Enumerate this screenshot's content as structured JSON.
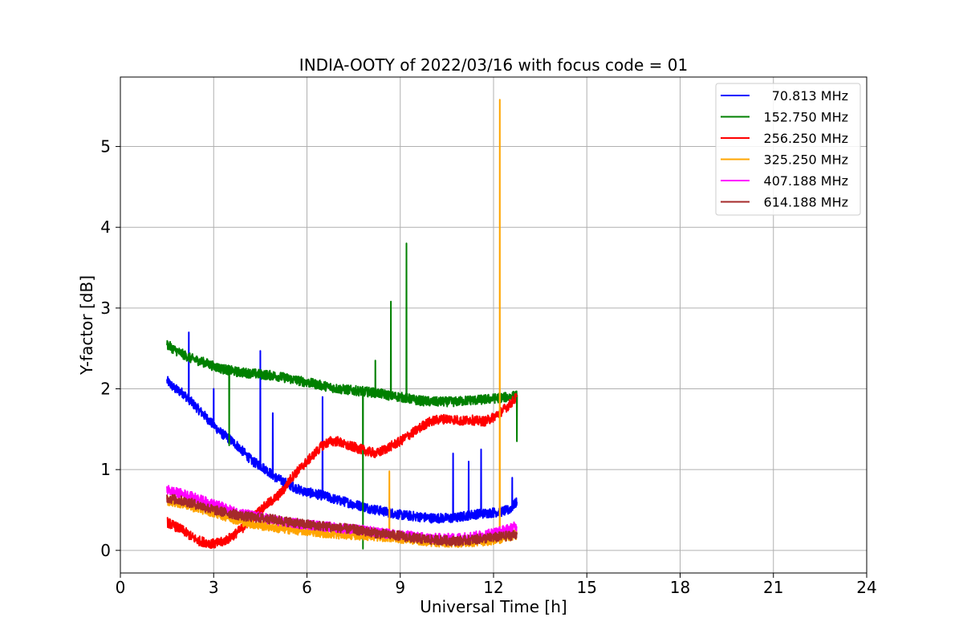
{
  "chart_data": {
    "type": "line",
    "title": "INDIA-OOTY of 2022/03/16 with focus code = 01",
    "xlabel": "Universal Time [h]",
    "ylabel": "Y-factor [dB]",
    "xlim": [
      0,
      24
    ],
    "ylim": [
      -0.28,
      5.86
    ],
    "xticks": [
      0,
      3,
      6,
      9,
      12,
      15,
      18,
      21,
      24
    ],
    "xtick_labels": [
      "0",
      "3",
      "6",
      "9",
      "12",
      "15",
      "18",
      "21",
      "24"
    ],
    "yticks": [
      0,
      1,
      2,
      3,
      4,
      5
    ],
    "ytick_labels": [
      "0",
      "1",
      "2",
      "3",
      "4",
      "5"
    ],
    "grid": true,
    "legend_position": "top-right",
    "series": [
      {
        "name": "70.813 MHz",
        "color": "#0000ff",
        "x": [
          1.5,
          1.75,
          2.0,
          2.25,
          2.5,
          2.75,
          3.0,
          3.25,
          3.5,
          3.75,
          4.0,
          4.25,
          4.5,
          4.75,
          5.0,
          5.25,
          5.5,
          5.75,
          6.0,
          6.25,
          6.5,
          6.75,
          7.0,
          7.25,
          7.5,
          7.75,
          8.0,
          8.25,
          8.5,
          8.75,
          9.0,
          9.25,
          9.5,
          9.75,
          10.0,
          10.25,
          10.5,
          10.75,
          11.0,
          11.25,
          11.5,
          11.75,
          12.0,
          12.25,
          12.5,
          12.75
        ],
        "y": [
          2.1,
          2.0,
          1.95,
          1.85,
          1.75,
          1.65,
          1.55,
          1.45,
          1.38,
          1.3,
          1.2,
          1.1,
          1.05,
          0.98,
          0.9,
          0.85,
          0.8,
          0.75,
          0.72,
          0.7,
          0.68,
          0.65,
          0.62,
          0.6,
          0.57,
          0.55,
          0.52,
          0.5,
          0.48,
          0.46,
          0.44,
          0.43,
          0.42,
          0.41,
          0.4,
          0.4,
          0.4,
          0.4,
          0.42,
          0.44,
          0.45,
          0.46,
          0.47,
          0.48,
          0.5,
          0.6
        ],
        "spikes": [
          [
            2.2,
            2.7
          ],
          [
            3.0,
            2.0
          ],
          [
            4.5,
            2.47
          ],
          [
            4.9,
            1.7
          ],
          [
            6.5,
            1.9
          ],
          [
            10.7,
            1.2
          ],
          [
            11.2,
            1.1
          ],
          [
            11.6,
            1.25
          ],
          [
            12.6,
            0.9
          ]
        ]
      },
      {
        "name": "152.750 MHz",
        "color": "#008000",
        "x": [
          1.5,
          1.75,
          2.0,
          2.25,
          2.5,
          2.75,
          3.0,
          3.25,
          3.5,
          3.75,
          4.0,
          4.25,
          4.5,
          4.75,
          5.0,
          5.25,
          5.5,
          5.75,
          6.0,
          6.25,
          6.5,
          6.75,
          7.0,
          7.25,
          7.5,
          7.75,
          8.0,
          8.25,
          8.5,
          8.75,
          9.0,
          9.25,
          9.5,
          9.75,
          10.0,
          10.25,
          10.5,
          10.75,
          11.0,
          11.25,
          11.5,
          11.75,
          12.0,
          12.25,
          12.5,
          12.75
        ],
        "y": [
          2.55,
          2.48,
          2.43,
          2.38,
          2.35,
          2.32,
          2.28,
          2.25,
          2.23,
          2.21,
          2.2,
          2.19,
          2.18,
          2.17,
          2.16,
          2.14,
          2.12,
          2.1,
          2.08,
          2.06,
          2.04,
          2.02,
          2.0,
          1.99,
          1.98,
          1.97,
          1.96,
          1.95,
          1.93,
          1.91,
          1.9,
          1.88,
          1.86,
          1.85,
          1.84,
          1.84,
          1.84,
          1.84,
          1.85,
          1.86,
          1.86,
          1.87,
          1.88,
          1.89,
          1.9,
          1.92
        ],
        "spikes": [
          [
            3.5,
            1.3
          ],
          [
            7.8,
            0.02
          ],
          [
            8.2,
            2.35
          ],
          [
            8.7,
            3.08
          ],
          [
            9.2,
            3.8
          ],
          [
            12.75,
            1.35
          ]
        ]
      },
      {
        "name": "256.250 MHz",
        "color": "#ff0000",
        "x": [
          1.5,
          1.75,
          2.0,
          2.25,
          2.5,
          2.75,
          3.0,
          3.25,
          3.5,
          3.75,
          4.0,
          4.25,
          4.5,
          4.75,
          5.0,
          5.25,
          5.5,
          5.75,
          6.0,
          6.25,
          6.5,
          6.75,
          7.0,
          7.25,
          7.5,
          7.75,
          8.0,
          8.25,
          8.5,
          8.75,
          9.0,
          9.25,
          9.5,
          9.75,
          10.0,
          10.25,
          10.5,
          10.75,
          11.0,
          11.25,
          11.5,
          11.75,
          12.0,
          12.25,
          12.5,
          12.75
        ],
        "y": [
          0.35,
          0.3,
          0.25,
          0.18,
          0.12,
          0.1,
          0.08,
          0.1,
          0.15,
          0.22,
          0.3,
          0.4,
          0.5,
          0.58,
          0.65,
          0.75,
          0.9,
          1.0,
          1.1,
          1.2,
          1.3,
          1.35,
          1.35,
          1.3,
          1.28,
          1.25,
          1.22,
          1.2,
          1.25,
          1.3,
          1.35,
          1.42,
          1.48,
          1.55,
          1.6,
          1.62,
          1.63,
          1.62,
          1.6,
          1.62,
          1.6,
          1.6,
          1.65,
          1.72,
          1.8,
          1.9
        ],
        "spikes": []
      },
      {
        "name": "325.250 MHz",
        "color": "#ffa500",
        "x": [
          1.5,
          1.75,
          2.0,
          2.25,
          2.5,
          2.75,
          3.0,
          3.25,
          3.5,
          3.75,
          4.0,
          4.25,
          4.5,
          4.75,
          5.0,
          5.25,
          5.5,
          5.75,
          6.0,
          6.25,
          6.5,
          6.75,
          7.0,
          7.25,
          7.5,
          7.75,
          8.0,
          8.25,
          8.5,
          8.75,
          9.0,
          9.25,
          9.5,
          9.75,
          10.0,
          10.25,
          10.5,
          10.75,
          11.0,
          11.25,
          11.5,
          11.75,
          12.0,
          12.25,
          12.5,
          12.75
        ],
        "y": [
          0.62,
          0.6,
          0.58,
          0.55,
          0.52,
          0.5,
          0.47,
          0.44,
          0.41,
          0.38,
          0.35,
          0.33,
          0.31,
          0.3,
          0.28,
          0.27,
          0.26,
          0.25,
          0.24,
          0.23,
          0.22,
          0.21,
          0.2,
          0.2,
          0.19,
          0.19,
          0.18,
          0.17,
          0.17,
          0.16,
          0.15,
          0.14,
          0.13,
          0.12,
          0.11,
          0.1,
          0.1,
          0.1,
          0.1,
          0.1,
          0.11,
          0.12,
          0.13,
          0.15,
          0.17,
          0.2
        ],
        "spikes": [
          [
            8.65,
            0.98
          ],
          [
            12.2,
            5.58
          ]
        ]
      },
      {
        "name": "407.188 MHz",
        "color": "#ff00ff",
        "x": [
          1.5,
          1.75,
          2.0,
          2.25,
          2.5,
          2.75,
          3.0,
          3.25,
          3.5,
          3.75,
          4.0,
          4.25,
          4.5,
          4.75,
          5.0,
          5.25,
          5.5,
          5.75,
          6.0,
          6.25,
          6.5,
          6.75,
          7.0,
          7.25,
          7.5,
          7.75,
          8.0,
          8.25,
          8.5,
          8.75,
          9.0,
          9.25,
          9.5,
          9.75,
          10.0,
          10.25,
          10.5,
          10.75,
          11.0,
          11.25,
          11.5,
          11.75,
          12.0,
          12.25,
          12.5,
          12.75
        ],
        "y": [
          0.75,
          0.72,
          0.7,
          0.67,
          0.64,
          0.6,
          0.57,
          0.54,
          0.5,
          0.47,
          0.45,
          0.43,
          0.41,
          0.39,
          0.37,
          0.35,
          0.34,
          0.33,
          0.32,
          0.31,
          0.3,
          0.29,
          0.28,
          0.27,
          0.26,
          0.25,
          0.24,
          0.22,
          0.21,
          0.2,
          0.19,
          0.18,
          0.17,
          0.16,
          0.15,
          0.15,
          0.15,
          0.15,
          0.16,
          0.17,
          0.18,
          0.2,
          0.22,
          0.24,
          0.27,
          0.3
        ],
        "spikes": []
      },
      {
        "name": "614.188 MHz",
        "color": "#a52a2a",
        "x": [
          1.5,
          1.75,
          2.0,
          2.25,
          2.5,
          2.75,
          3.0,
          3.25,
          3.5,
          3.75,
          4.0,
          4.25,
          4.5,
          4.75,
          5.0,
          5.25,
          5.5,
          5.75,
          6.0,
          6.25,
          6.5,
          6.75,
          7.0,
          7.25,
          7.5,
          7.75,
          8.0,
          8.25,
          8.5,
          8.75,
          9.0,
          9.25,
          9.5,
          9.75,
          10.0,
          10.25,
          10.5,
          10.75,
          11.0,
          11.25,
          11.5,
          11.75,
          12.0,
          12.25,
          12.5,
          12.75
        ],
        "y": [
          0.65,
          0.63,
          0.61,
          0.59,
          0.56,
          0.53,
          0.5,
          0.48,
          0.46,
          0.44,
          0.42,
          0.41,
          0.4,
          0.39,
          0.38,
          0.36,
          0.35,
          0.33,
          0.32,
          0.31,
          0.3,
          0.29,
          0.28,
          0.27,
          0.26,
          0.24,
          0.23,
          0.21,
          0.2,
          0.19,
          0.18,
          0.16,
          0.15,
          0.14,
          0.13,
          0.13,
          0.12,
          0.12,
          0.12,
          0.13,
          0.14,
          0.15,
          0.16,
          0.17,
          0.18,
          0.2
        ],
        "spikes": []
      }
    ]
  }
}
